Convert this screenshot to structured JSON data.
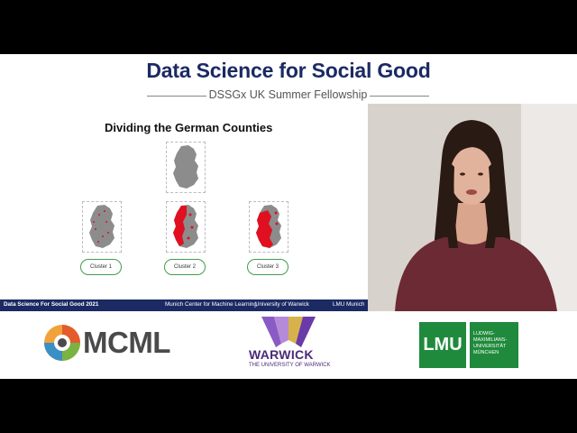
{
  "header": {
    "title": "Data Science for Social Good",
    "subtitle": "DSSGx UK Summer Fellowship"
  },
  "slide": {
    "heading": "Dividing the German Counties",
    "clusters": [
      "Cluster 1",
      "Cluster 2",
      "Cluster 3"
    ]
  },
  "footer": {
    "left": "Data Science For Social Good 2021",
    "mid1": "Munich Center for Machine Learning",
    "mid2": "University of Warwick",
    "right": "LMU Munich"
  },
  "logos": {
    "mcml": "MCML",
    "warwick": "WARWICK",
    "warwick_sub": "THE UNIVERSITY OF WARWICK",
    "lmu": "LMU",
    "lmu_sub": "LUDWIG-\nMAXIMILIANS-\nUNIVERSITÄT\nMÜNCHEN"
  },
  "colors": {
    "title_navy": "#1b2a63",
    "map_gray": "#8c8c8c",
    "highlight_red": "#e01020",
    "cluster_green": "#3f9e4a",
    "lmu_green": "#1f8a3c",
    "warwick_purple": "#4b2a78"
  }
}
